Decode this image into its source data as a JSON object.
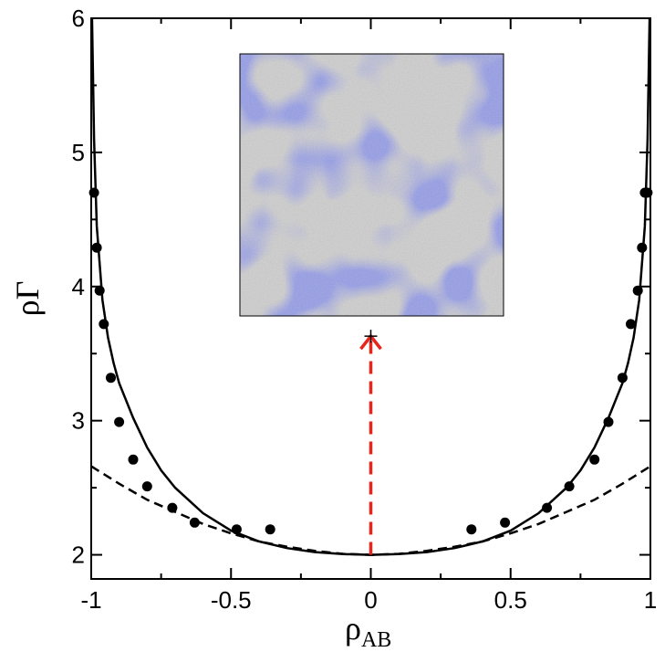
{
  "chart_data": {
    "type": "line",
    "xlabel": "ρ",
    "xlabel_subscript": "AB",
    "ylabel": "ρΓ",
    "xlim": [
      -1,
      1
    ],
    "ylim": [
      1.82,
      6
    ],
    "xticks": [
      -1,
      -0.5,
      0,
      0.5,
      1
    ],
    "xtick_labels": [
      "-1",
      "-0.5",
      "0",
      "0.5",
      "1"
    ],
    "yticks": [
      2,
      3,
      4,
      5,
      6
    ],
    "ytick_labels": [
      "2",
      "3",
      "4",
      "5",
      "6"
    ],
    "series": [
      {
        "style": "solid",
        "color": "#000000",
        "x": [
          -0.997,
          -0.99,
          -0.98,
          -0.96,
          -0.94,
          -0.92,
          -0.9,
          -0.85,
          -0.8,
          -0.75,
          -0.7,
          -0.6,
          -0.5,
          -0.4,
          -0.3,
          -0.2,
          -0.1,
          0,
          0.1,
          0.2,
          0.3,
          0.4,
          0.5,
          0.6,
          0.7,
          0.75,
          0.8,
          0.85,
          0.9,
          0.92,
          0.94,
          0.96,
          0.98,
          0.99,
          0.997
        ],
        "y": [
          6.0,
          5.1,
          4.45,
          3.9,
          3.62,
          3.43,
          3.28,
          3.02,
          2.8,
          2.63,
          2.5,
          2.31,
          2.18,
          2.1,
          2.05,
          2.02,
          2.005,
          2.0,
          2.005,
          2.02,
          2.05,
          2.1,
          2.18,
          2.31,
          2.5,
          2.63,
          2.8,
          3.02,
          3.28,
          3.43,
          3.62,
          3.9,
          4.45,
          5.1,
          6.0
        ]
      },
      {
        "style": "dashed",
        "color": "#000000",
        "x": [
          -1,
          -0.9,
          -0.8,
          -0.7,
          -0.6,
          -0.5,
          -0.4,
          -0.3,
          -0.2,
          -0.1,
          0,
          0.1,
          0.2,
          0.3,
          0.4,
          0.5,
          0.6,
          0.7,
          0.8,
          0.9,
          1
        ],
        "y": [
          2.66,
          2.53,
          2.41,
          2.32,
          2.23,
          2.16,
          2.1,
          2.06,
          2.03,
          2.007,
          2.0,
          2.007,
          2.03,
          2.06,
          2.1,
          2.16,
          2.23,
          2.32,
          2.41,
          2.53,
          2.66
        ]
      },
      {
        "style": "points",
        "color": "#000000",
        "x": [
          -0.99,
          -0.98,
          -0.97,
          -0.955,
          -0.93,
          -0.9,
          -0.85,
          -0.8,
          -0.71,
          -0.63,
          -0.48,
          -0.36,
          0.36,
          0.48,
          0.63,
          0.71,
          0.8,
          0.85,
          0.9,
          0.93,
          0.955,
          0.97,
          0.98,
          0.99
        ],
        "y": [
          4.7,
          4.29,
          3.97,
          3.72,
          3.32,
          2.99,
          2.71,
          2.51,
          2.35,
          2.24,
          2.19,
          2.19,
          2.19,
          2.24,
          2.35,
          2.51,
          2.71,
          2.99,
          3.32,
          3.72,
          3.97,
          4.29,
          4.7,
          4.7
        ]
      }
    ],
    "annotation": {
      "type": "arrow",
      "style": "dashed",
      "color": "#e8251d",
      "from": [
        0,
        2.0
      ],
      "to": [
        0,
        3.63
      ]
    },
    "inset": {
      "type": "image",
      "description_colors": [
        "#4b55cf",
        "#c8c8c8"
      ]
    }
  }
}
